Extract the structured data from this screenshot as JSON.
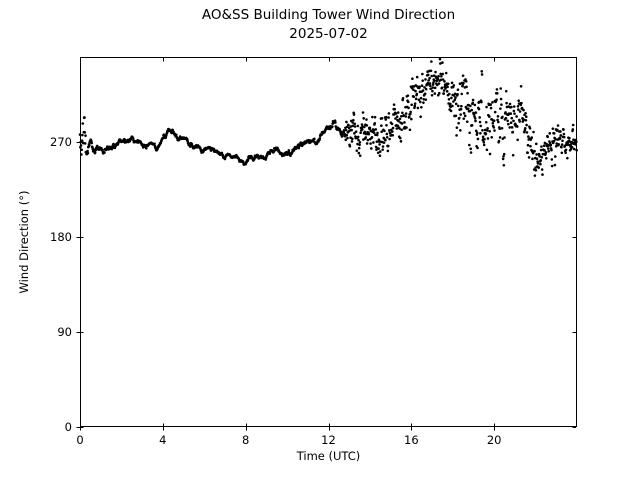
{
  "figure": {
    "background": "#ffffff",
    "axis_color": "#000000"
  },
  "chart_data": {
    "type": "scatter",
    "title": "AO&SS Building Tower Wind Direction",
    "subtitle": "2025-07-02",
    "xlabel": "Time (UTC)",
    "ylabel": "Wind Direction (°)",
    "xlim": [
      0,
      24
    ],
    "ylim": [
      0,
      350
    ],
    "xticks": [
      0,
      4,
      8,
      12,
      16,
      20
    ],
    "yticks": [
      0,
      90,
      180,
      270
    ],
    "grid": false,
    "legend": null,
    "marker": {
      "color": "#000000",
      "radius_px": 1.3
    },
    "points_per_hour": 60,
    "n_points": 1440,
    "seed": 20250702,
    "trend_keyframes_comment": "each item = [hour_utc, mean_wind_direction_deg, scatter_spread_deg]; values read from the plotted minute-resolution series",
    "trend_keyframes": [
      [
        0.0,
        278,
        60
      ],
      [
        0.2,
        278,
        36
      ],
      [
        0.5,
        271,
        20
      ],
      [
        1.0,
        265,
        12
      ],
      [
        1.5,
        264,
        10
      ],
      [
        2.0,
        268,
        10
      ],
      [
        2.5,
        273,
        12
      ],
      [
        3.0,
        266,
        10
      ],
      [
        3.5,
        264,
        10
      ],
      [
        4.0,
        271,
        12
      ],
      [
        4.5,
        278,
        12
      ],
      [
        5.0,
        271,
        12
      ],
      [
        5.5,
        264,
        10
      ],
      [
        6.0,
        262,
        10
      ],
      [
        6.5,
        263,
        10
      ],
      [
        7.0,
        257,
        10
      ],
      [
        7.5,
        255,
        10
      ],
      [
        8.0,
        252,
        10
      ],
      [
        8.5,
        254,
        12
      ],
      [
        9.0,
        257,
        12
      ],
      [
        9.5,
        261,
        12
      ],
      [
        10.0,
        263,
        12
      ],
      [
        10.5,
        266,
        12
      ],
      [
        11.0,
        269,
        14
      ],
      [
        11.5,
        274,
        14
      ],
      [
        12.0,
        287,
        14
      ],
      [
        12.3,
        289,
        14
      ],
      [
        12.7,
        279,
        16
      ],
      [
        13.0,
        276,
        40
      ],
      [
        13.5,
        281,
        48
      ],
      [
        14.0,
        277,
        44
      ],
      [
        14.5,
        270,
        44
      ],
      [
        15.0,
        284,
        44
      ],
      [
        15.5,
        294,
        46
      ],
      [
        16.0,
        305,
        48
      ],
      [
        16.5,
        317,
        48
      ],
      [
        17.0,
        325,
        42
      ],
      [
        17.5,
        329,
        38
      ],
      [
        18.0,
        313,
        52
      ],
      [
        18.5,
        304,
        62
      ],
      [
        19.0,
        294,
        78
      ],
      [
        19.5,
        286,
        72
      ],
      [
        20.0,
        289,
        70
      ],
      [
        20.5,
        287,
        62
      ],
      [
        21.0,
        297,
        44
      ],
      [
        21.5,
        288,
        62
      ],
      [
        22.0,
        258,
        46
      ],
      [
        22.5,
        266,
        40
      ],
      [
        23.0,
        272,
        36
      ],
      [
        23.5,
        268,
        30
      ],
      [
        24.0,
        272,
        24
      ]
    ]
  }
}
